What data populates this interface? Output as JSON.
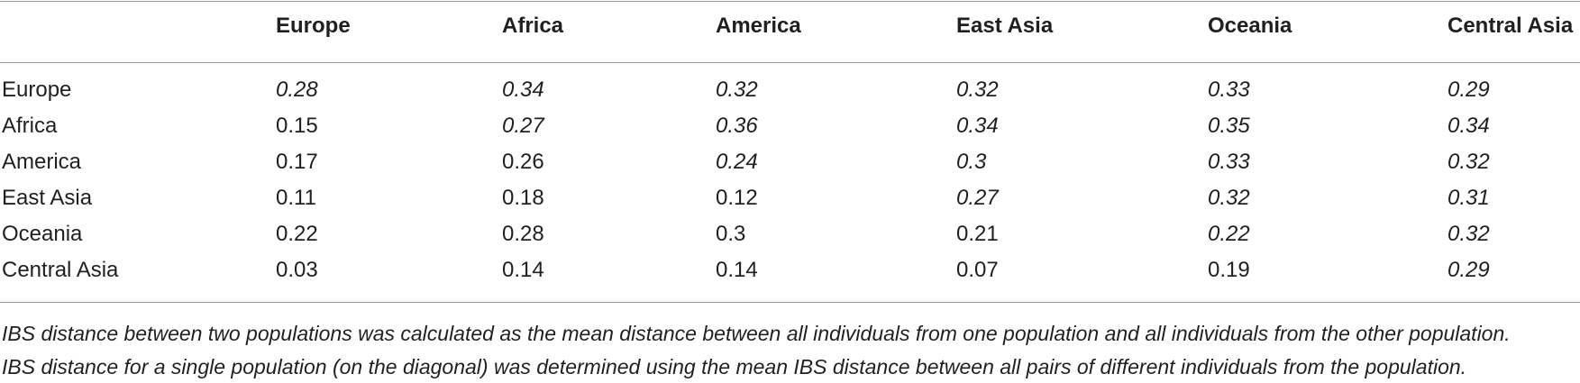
{
  "table": {
    "columns": [
      "",
      "Europe",
      "Africa",
      "America",
      "East Asia",
      "Oceania",
      "Central Asia"
    ],
    "rows": [
      {
        "label": "Europe",
        "values": [
          "0.28",
          "0.34",
          "0.32",
          "0.32",
          "0.33",
          "0.29"
        ],
        "italic": [
          true,
          true,
          true,
          true,
          true,
          true
        ]
      },
      {
        "label": "Africa",
        "values": [
          "0.15",
          "0.27",
          "0.36",
          "0.34",
          "0.35",
          "0.34"
        ],
        "italic": [
          false,
          true,
          true,
          true,
          true,
          true
        ]
      },
      {
        "label": "America",
        "values": [
          "0.17",
          "0.26",
          "0.24",
          "0.3",
          "0.33",
          "0.32"
        ],
        "italic": [
          false,
          false,
          true,
          true,
          true,
          true
        ]
      },
      {
        "label": "East Asia",
        "values": [
          "0.11",
          "0.18",
          "0.12",
          "0.27",
          "0.32",
          "0.31"
        ],
        "italic": [
          false,
          false,
          false,
          true,
          true,
          true
        ]
      },
      {
        "label": "Oceania",
        "values": [
          "0.22",
          "0.28",
          "0.3",
          "0.21",
          "0.22",
          "0.32"
        ],
        "italic": [
          false,
          false,
          false,
          false,
          true,
          true
        ]
      },
      {
        "label": "Central Asia",
        "values": [
          "0.03",
          "0.14",
          "0.14",
          "0.07",
          "0.19",
          "0.29"
        ],
        "italic": [
          false,
          false,
          false,
          false,
          false,
          true
        ]
      }
    ]
  },
  "footnotes": [
    "IBS distance between two populations was calculated as the mean distance between all individuals from one population and all individuals from the other population.",
    "IBS distance for a single population (on the diagonal) was determined using the mean IBS distance between all pairs of different individuals from the population."
  ],
  "colors": {
    "text": "#231f20",
    "rule": "#9a9a9a"
  }
}
